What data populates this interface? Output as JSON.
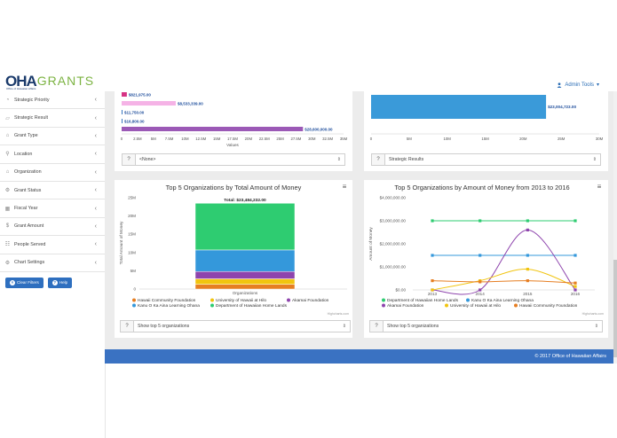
{
  "brand": {
    "logo_mark": "OHA",
    "logo_text": "GRANTS",
    "logo_sub": "Office of Hawaiian Affairs"
  },
  "header": {
    "admin_label": "Admin Tools"
  },
  "sidebar": {
    "items": [
      {
        "label": "Strategic Priority",
        "icon": "pie-icon"
      },
      {
        "label": "Strategic Result",
        "icon": "chart-icon"
      },
      {
        "label": "Grant Type",
        "icon": "tag-icon"
      },
      {
        "label": "Location",
        "icon": "pin-icon"
      },
      {
        "label": "Organization",
        "icon": "home-icon"
      },
      {
        "label": "Grant Status",
        "icon": "gear-icon"
      },
      {
        "label": "Fiscal Year",
        "icon": "calendar-icon"
      },
      {
        "label": "Grant Amount",
        "icon": "dollar-icon"
      },
      {
        "label": "People Served",
        "icon": "people-icon"
      },
      {
        "label": "Chart Settings",
        "icon": "cog-icon"
      }
    ],
    "clear_label": "Clear Filters",
    "help_label": "Help"
  },
  "top_left_chart": {
    "bar_labels": [
      "$821,975.00",
      "$8,533,339.00",
      "$11,750.00",
      "$16,800.00",
      "$28,600,000.00"
    ],
    "bar_colors": [
      "#d63384",
      "#f5b3e6",
      "#3a78c2",
      "#3a78c2",
      "#9b59b6"
    ],
    "x_ticks": [
      "0",
      "2.5M",
      "5M",
      "7.5M",
      "10M",
      "12.5M",
      "15M",
      "17.5M",
      "20M",
      "22.5M",
      "25M",
      "27.5M",
      "30M",
      "32.5M",
      "35M"
    ],
    "xlabel": "Values",
    "select_value": "<None>"
  },
  "top_right_chart": {
    "bar_label": "$23,004,723.00",
    "bar_color": "#3a9ad9",
    "x_ticks": [
      "0",
      "5M",
      "10M",
      "15M",
      "20M",
      "25M",
      "30M"
    ],
    "select_value": "Strategic Results"
  },
  "chart_data": [
    {
      "type": "bar",
      "title": "Top 5 Organizations by Total Amount of Money",
      "stacked": true,
      "total_label": "Total: $23,484,232.00",
      "categories": [
        "Organizations"
      ],
      "ylabel": "Total Amount of Money",
      "ylim": [
        0,
        25000000
      ],
      "y_ticks": [
        "0",
        "5M",
        "10M",
        "15M",
        "20M",
        "25M"
      ],
      "series": [
        {
          "name": "Hawaii Community Foundation",
          "values": [
            1300000
          ],
          "color": "#e67e22"
        },
        {
          "name": "University of Hawaii at Hilo",
          "values": [
            1500000
          ],
          "color": "#f1c40f"
        },
        {
          "name": "Akamai Foundation",
          "values": [
            2000000
          ],
          "color": "#8e44ad"
        },
        {
          "name": "Kanu O Ka Aina Learning Ohana",
          "values": [
            5900000
          ],
          "color": "#3498db"
        },
        {
          "name": "Department of Hawaiian Home Lands",
          "values": [
            12784232
          ],
          "color": "#2ecc71"
        }
      ],
      "legend_position": "bottom",
      "credit": "Highcharts.com",
      "select_value": "Show top 5 organizations"
    },
    {
      "type": "line",
      "title": "Top 5 Organizations by Amount of Money from 2013 to 2016",
      "x": [
        "2013",
        "2014",
        "2015",
        "2016"
      ],
      "ylabel": "Amount of Money",
      "ylim": [
        0,
        4000000
      ],
      "y_ticks": [
        "$0.00",
        "$1,000,000.00",
        "$2,000,000.00",
        "$3,000,000.00",
        "$4,000,000.00"
      ],
      "series": [
        {
          "name": "Department of Hawaiian Home Lands",
          "values": [
            3000000,
            3000000,
            3000000,
            3000000
          ],
          "color": "#2ecc71"
        },
        {
          "name": "Kanu O Ka Aina Learning Ohana",
          "values": [
            1500000,
            1500000,
            1500000,
            1500000
          ],
          "color": "#3498db"
        },
        {
          "name": "Akamai Foundation",
          "values": [
            0,
            0,
            2600000,
            0
          ],
          "color": "#8e44ad"
        },
        {
          "name": "University of Hawaii at Hilo",
          "values": [
            0,
            400000,
            900000,
            150000
          ],
          "color": "#f1c40f"
        },
        {
          "name": "Hawaii Community Foundation",
          "values": [
            400000,
            350000,
            400000,
            300000
          ],
          "color": "#e67e22"
        }
      ],
      "legend_position": "bottom",
      "credit": "Highcharts.com",
      "select_value": "Show top 5 organizations"
    }
  ],
  "footer": {
    "text": "© 2017 Office of Hawaiian Affairs"
  }
}
